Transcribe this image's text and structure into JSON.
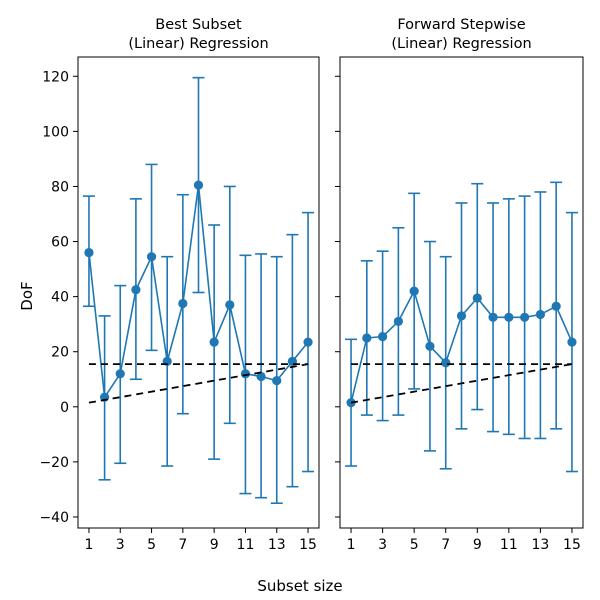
{
  "figure": {
    "xlabel": "Subset size",
    "ylabel": "DoF"
  },
  "chart_data": [
    {
      "type": "line",
      "title_lines": [
        "Best Subset",
        "(Linear) Regression"
      ],
      "x": [
        1,
        2,
        3,
        4,
        5,
        6,
        7,
        8,
        9,
        10,
        11,
        12,
        13,
        14,
        15
      ],
      "y": [
        56,
        3.5,
        12,
        42.5,
        54.5,
        16.5,
        37.5,
        80.5,
        23.5,
        37,
        12,
        11,
        9.5,
        16.5,
        23.5
      ],
      "y_err_low": [
        36.5,
        -26.5,
        -20.5,
        10,
        20.5,
        -21.5,
        -2.5,
        41.5,
        -19,
        -6,
        -31.5,
        -33,
        -35,
        -29,
        -23.5
      ],
      "y_err_high": [
        76.5,
        33,
        44,
        75.5,
        88,
        54.5,
        77,
        119.5,
        66,
        80,
        55,
        55.5,
        54.5,
        62.5,
        70.5
      ],
      "ref_horizontal": 15.5,
      "ref_diagonal": [
        [
          1,
          1.5
        ],
        [
          15,
          15.5
        ]
      ],
      "xlim": [
        0.3,
        15.7
      ],
      "ylim": [
        -44,
        127
      ],
      "xticks": [
        1,
        3,
        5,
        7,
        9,
        11,
        13,
        15
      ],
      "yticks": [
        -40,
        -20,
        0,
        20,
        40,
        60,
        80,
        100,
        120
      ],
      "show_yticklabels": true,
      "grid": false
    },
    {
      "type": "line",
      "title_lines": [
        "Forward Stepwise",
        "(Linear) Regression"
      ],
      "x": [
        1,
        2,
        3,
        4,
        5,
        6,
        7,
        8,
        9,
        10,
        11,
        12,
        13,
        14,
        15
      ],
      "y": [
        1.5,
        25,
        25.5,
        31,
        42,
        22,
        16,
        33,
        39.5,
        32.5,
        32.5,
        32.5,
        33.5,
        36.5,
        23.5
      ],
      "y_err_low": [
        -21.5,
        -3,
        -5,
        -3,
        6.5,
        -16,
        -22.5,
        -8,
        -1,
        -9,
        -10,
        -11.5,
        -11.5,
        -8,
        -23.5
      ],
      "y_err_high": [
        24.5,
        53,
        56.5,
        65,
        77.5,
        60,
        54.5,
        74,
        81,
        74,
        75.5,
        76.5,
        78,
        81.5,
        70.5
      ],
      "ref_horizontal": 15.5,
      "ref_diagonal": [
        [
          1,
          1.5
        ],
        [
          15,
          15.5
        ]
      ],
      "xlim": [
        0.3,
        15.7
      ],
      "ylim": [
        -44,
        127
      ],
      "xticks": [
        1,
        3,
        5,
        7,
        9,
        11,
        13,
        15
      ],
      "yticks": [
        -40,
        -20,
        0,
        20,
        40,
        60,
        80,
        100,
        120
      ],
      "show_yticklabels": false,
      "grid": false
    }
  ]
}
